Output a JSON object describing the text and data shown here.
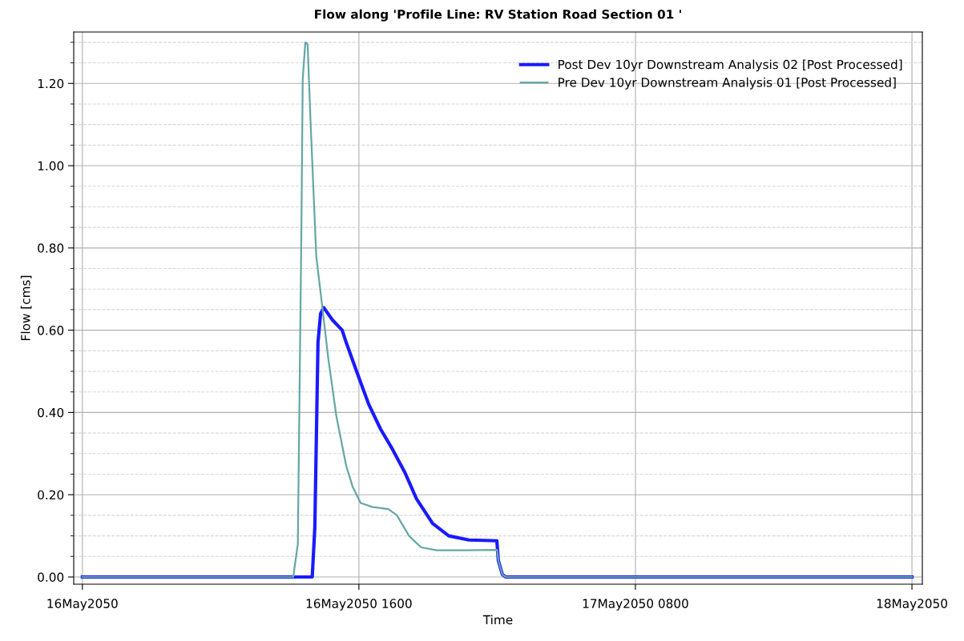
{
  "chart_data": {
    "type": "line",
    "title": "Flow along 'Profile Line: RV Station Road Section 01 '",
    "xlabel": "Time",
    "ylabel": "Flow [cms]",
    "xlim": [
      "2050-05-15T23:30",
      "2050-05-18T00:36"
    ],
    "ylim": [
      -0.0175,
      1.325
    ],
    "xticks": [
      {
        "value": "2050-05-16",
        "label": "16May2050"
      },
      {
        "value": "2050-05-16T16:00",
        "label": "16May2050 1600"
      },
      {
        "value": "2050-05-17T08:00",
        "label": "17May2050 0800"
      },
      {
        "value": "2050-05-18",
        "label": "18May2050"
      }
    ],
    "yticks": [
      {
        "value": 0,
        "label": "0.00"
      },
      {
        "value": 0.05,
        "label": null
      },
      {
        "value": 0.1,
        "label": null
      },
      {
        "value": 0.15,
        "label": null
      },
      {
        "value": 0.2,
        "label": "0.20"
      },
      {
        "value": 0.25,
        "label": null
      },
      {
        "value": 0.3,
        "label": null
      },
      {
        "value": 0.35,
        "label": null
      },
      {
        "value": 0.4,
        "label": "0.40"
      },
      {
        "value": 0.45,
        "label": null
      },
      {
        "value": 0.5,
        "label": null
      },
      {
        "value": 0.55,
        "label": null
      },
      {
        "value": 0.6,
        "label": "0.60"
      },
      {
        "value": 0.65,
        "label": null
      },
      {
        "value": 0.7,
        "label": null
      },
      {
        "value": 0.75,
        "label": null
      },
      {
        "value": 0.8,
        "label": "0.80"
      },
      {
        "value": 0.85,
        "label": null
      },
      {
        "value": 0.9,
        "label": null
      },
      {
        "value": 0.95,
        "label": null
      },
      {
        "value": 1.0,
        "label": "1.00"
      },
      {
        "value": 1.05,
        "label": null
      },
      {
        "value": 1.1,
        "label": null
      },
      {
        "value": 1.15,
        "label": null
      },
      {
        "value": 1.2,
        "label": "1.20"
      },
      {
        "value": 1.25,
        "label": null
      },
      {
        "value": 1.3,
        "label": null
      }
    ],
    "grid": true,
    "legend": "top right",
    "marker": "none",
    "line_style": "solid",
    "series": [
      {
        "name": "Post Dev 10yr Downstream Analysis 02 [Post Processed]",
        "color": "#1a1aff",
        "x": [
          "2050-05-16T00:00",
          "2050-05-16T13:18",
          "2050-05-16T13:27",
          "2050-05-16T13:38",
          "2050-05-16T13:47",
          "2050-05-16T13:58",
          "2050-05-16T14:28",
          "2050-05-16T15:02",
          "2050-05-16T15:16",
          "2050-05-16T15:52",
          "2050-05-16T16:34",
          "2050-05-16T17:15",
          "2050-05-16T17:57",
          "2050-05-16T18:39",
          "2050-05-16T19:20",
          "2050-05-16T20:16",
          "2050-05-16T21:12",
          "2050-05-16T22:22",
          "2050-05-16T23:59",
          "2050-05-17T00:04",
          "2050-05-17T00:18",
          "2050-05-17T00:30",
          "2050-05-18T00:00"
        ],
        "values": [
          0,
          0,
          0.12,
          0.57,
          0.64,
          0.655,
          0.625,
          0.6,
          0.57,
          0.5,
          0.42,
          0.36,
          0.31,
          0.255,
          0.19,
          0.13,
          0.1,
          0.09,
          0.088,
          0.04,
          0.006,
          0,
          0
        ]
      },
      {
        "name": "Pre Dev 10yr Downstream Analysis 01 [Post Processed]",
        "color": "#66a6a6",
        "x": [
          "2050-05-16T00:00",
          "2050-05-16T12:12",
          "2050-05-16T12:28",
          "2050-05-16T12:40",
          "2050-05-16T12:45",
          "2050-05-16T12:54",
          "2050-05-16T13:02",
          "2050-05-16T13:12",
          "2050-05-16T13:32",
          "2050-05-16T13:54",
          "2050-05-16T14:14",
          "2050-05-16T14:42",
          "2050-05-16T15:16",
          "2050-05-16T15:38",
          "2050-05-16T16:06",
          "2050-05-16T16:48",
          "2050-05-16T17:42",
          "2050-05-16T18:12",
          "2050-05-16T18:54",
          "2050-05-16T19:36",
          "2050-05-16T20:30",
          "2050-05-16T22:06",
          "2050-05-17T00:00",
          "2050-05-17T00:04",
          "2050-05-17T00:18",
          "2050-05-17T00:30",
          "2050-05-18T00:00"
        ],
        "values": [
          0,
          0,
          0.08,
          0.82,
          1.21,
          1.3,
          1.295,
          1.11,
          0.78,
          0.65,
          0.53,
          0.39,
          0.27,
          0.22,
          0.18,
          0.17,
          0.165,
          0.15,
          0.1,
          0.072,
          0.065,
          0.065,
          0.066,
          0.04,
          0.006,
          0,
          0
        ]
      }
    ]
  }
}
